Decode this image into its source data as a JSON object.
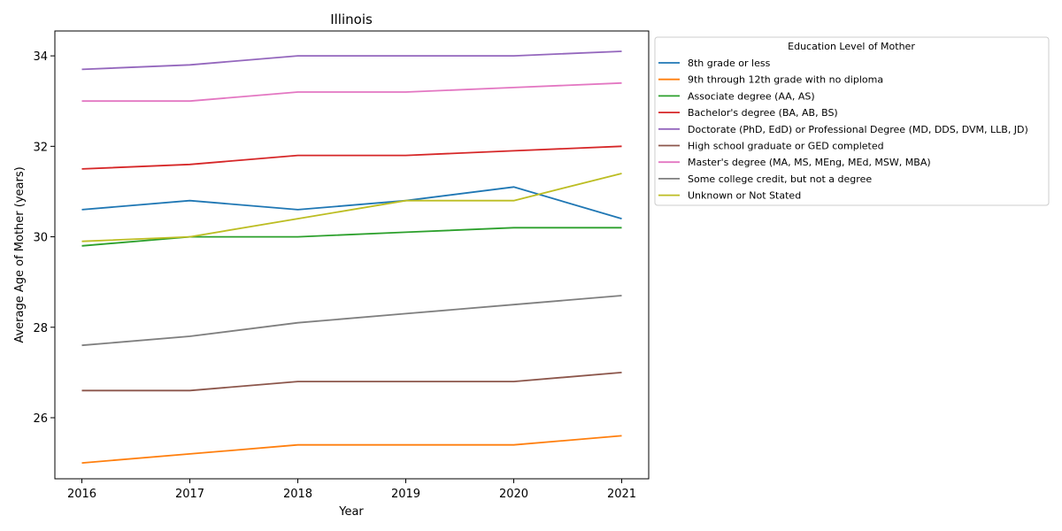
{
  "chart_data": {
    "type": "line",
    "title": "Illinois",
    "xlabel": "Year",
    "ylabel": "Average Age of Mother (years)",
    "x": [
      2016,
      2017,
      2018,
      2019,
      2020,
      2021
    ],
    "xlim": [
      2015.75,
      2021.25
    ],
    "ylim": [
      24.65,
      34.55
    ],
    "yticks": [
      26,
      28,
      30,
      32,
      34
    ],
    "grid": false,
    "legend": {
      "title": "Education Level of Mother",
      "placement": "outside-right-top"
    },
    "series": [
      {
        "name": "8th grade or less",
        "color": "#1f77b4",
        "values": [
          30.6,
          30.8,
          30.6,
          30.8,
          31.1,
          30.4
        ]
      },
      {
        "name": "9th through 12th grade with no diploma",
        "color": "#ff7f0e",
        "values": [
          25.0,
          25.2,
          25.4,
          25.4,
          25.4,
          25.6
        ]
      },
      {
        "name": "Associate degree (AA, AS)",
        "color": "#2ca02c",
        "values": [
          29.8,
          30.0,
          30.0,
          30.1,
          30.2,
          30.2
        ]
      },
      {
        "name": "Bachelor's degree (BA, AB, BS)",
        "color": "#d62728",
        "values": [
          31.5,
          31.6,
          31.8,
          31.8,
          31.9,
          32.0
        ]
      },
      {
        "name": "Doctorate (PhD, EdD) or Professional Degree (MD, DDS, DVM, LLB, JD)",
        "color": "#9467bd",
        "values": [
          33.7,
          33.8,
          34.0,
          34.0,
          34.0,
          34.1
        ]
      },
      {
        "name": "High school graduate or GED completed",
        "color": "#8c564b",
        "values": [
          26.6,
          26.6,
          26.8,
          26.8,
          26.8,
          27.0
        ]
      },
      {
        "name": "Master's degree (MA, MS, MEng, MEd, MSW, MBA)",
        "color": "#e377c2",
        "values": [
          33.0,
          33.0,
          33.2,
          33.2,
          33.3,
          33.4
        ]
      },
      {
        "name": "Some college credit, but not a degree",
        "color": "#7f7f7f",
        "values": [
          27.6,
          27.8,
          28.1,
          28.3,
          28.5,
          28.7
        ]
      },
      {
        "name": "Unknown or Not Stated",
        "color": "#bcbd22",
        "values": [
          29.9,
          30.0,
          30.4,
          30.8,
          30.8,
          31.4
        ]
      }
    ]
  }
}
